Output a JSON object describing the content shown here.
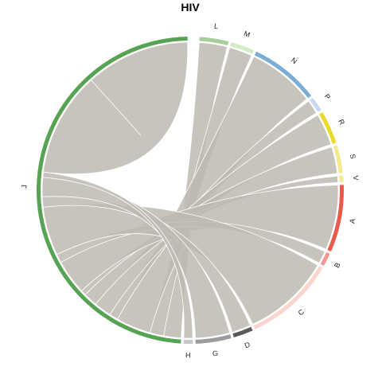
{
  "chart_data": {
    "type": "chord",
    "title": "HIV",
    "segments": [
      {
        "name": "L",
        "color": "#a6cf98",
        "start_deg": 3.5,
        "end_deg": 14.5
      },
      {
        "name": "M",
        "color": "#d2eec8",
        "start_deg": 15.5,
        "end_deg": 24.5
      },
      {
        "name": "N",
        "color": "#7baed6",
        "start_deg": 25.5,
        "end_deg": 52
      },
      {
        "name": "P",
        "color": "#c5daf0",
        "start_deg": 53,
        "end_deg": 58.5
      },
      {
        "name": "R",
        "color": "#ecda2a",
        "start_deg": 59.5,
        "end_deg": 72
      },
      {
        "name": "S",
        "color": "#f5ea8f",
        "start_deg": 73,
        "end_deg": 83.5
      },
      {
        "name": "V",
        "color": "#f3ec96",
        "start_deg": 84.5,
        "end_deg": 87
      },
      {
        "name": "A",
        "color": "#e95a4b",
        "start_deg": 88,
        "end_deg": 113.5
      },
      {
        "name": "B",
        "color": "#f29a92",
        "start_deg": 114.5,
        "end_deg": 119.5
      },
      {
        "name": "C",
        "color": "#fbd3cf",
        "start_deg": 120.5,
        "end_deg": 155
      },
      {
        "name": "D",
        "color": "#5a5a5a",
        "start_deg": 156,
        "end_deg": 163.5
      },
      {
        "name": "G",
        "color": "#9c9c9c",
        "start_deg": 164.5,
        "end_deg": 178
      },
      {
        "name": "H",
        "color": "#c8c8c8",
        "start_deg": 179,
        "end_deg": 182.5
      },
      {
        "name": "J",
        "color": "#57a354",
        "start_deg": 183.5,
        "end_deg": 359
      }
    ],
    "links": [
      {
        "from": "J",
        "to": "L",
        "weight": 10
      },
      {
        "from": "J",
        "to": "M",
        "weight": 8
      },
      {
        "from": "J",
        "to": "N",
        "weight": 20
      },
      {
        "from": "J",
        "to": "P",
        "weight": 5
      },
      {
        "from": "J",
        "to": "R",
        "weight": 10
      },
      {
        "from": "J",
        "to": "S",
        "weight": 8
      },
      {
        "from": "J",
        "to": "V",
        "weight": 3
      },
      {
        "from": "J",
        "to": "A",
        "weight": 20
      },
      {
        "from": "J",
        "to": "B",
        "weight": 5
      },
      {
        "from": "J",
        "to": "C",
        "weight": 28
      },
      {
        "from": "J",
        "to": "D",
        "weight": 6
      },
      {
        "from": "J",
        "to": "G",
        "weight": 11
      },
      {
        "from": "J",
        "to": "H",
        "weight": 3
      },
      {
        "from": "J",
        "to": "J",
        "weight": 60
      }
    ],
    "link_color": "#bdbab3"
  }
}
